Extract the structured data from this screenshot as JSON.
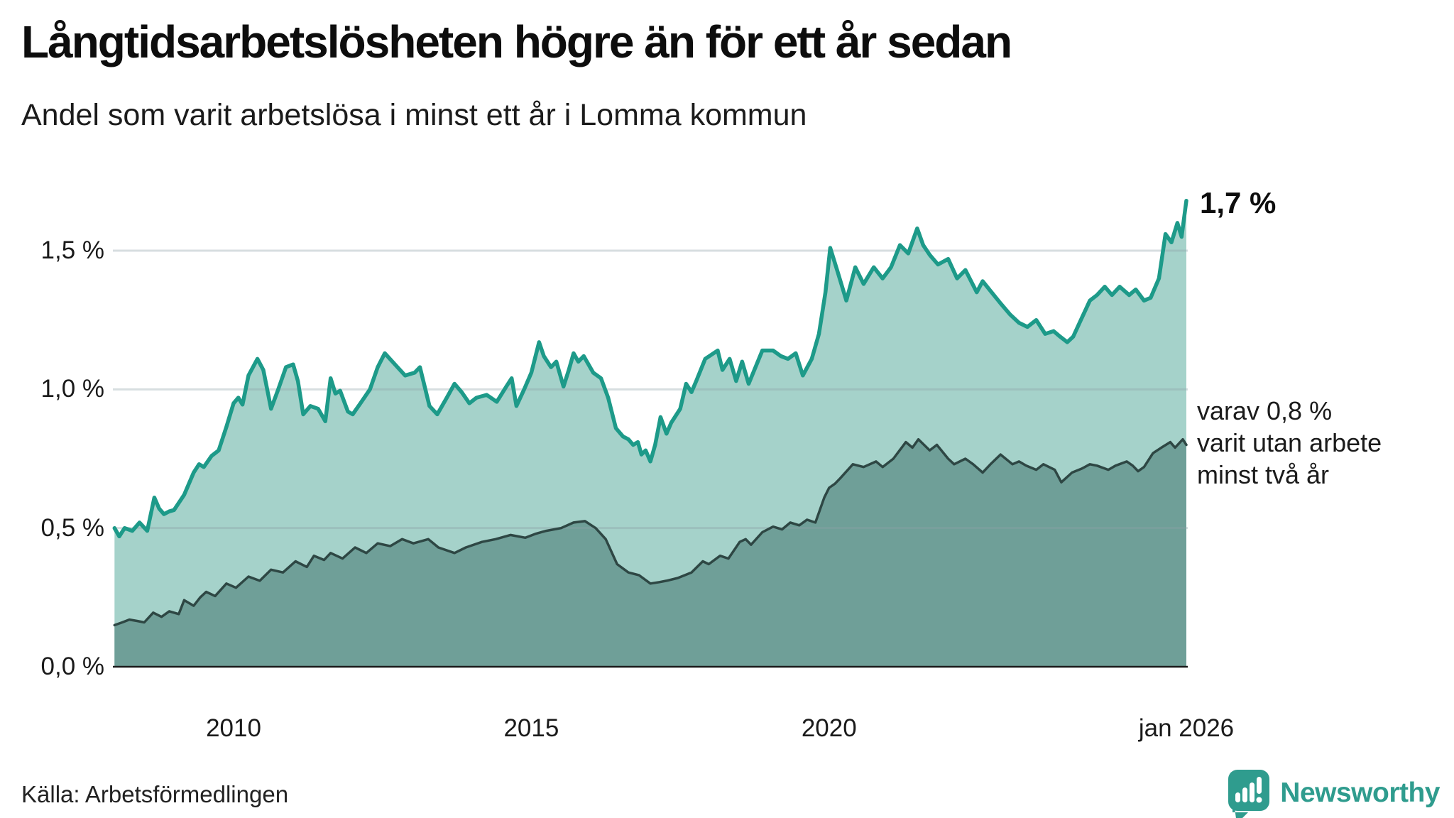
{
  "header": {
    "title": "Långtidsarbetslösheten högre än för ett år sedan",
    "subtitle": "Andel som varit arbetslösa i minst ett år i Lomma kommun"
  },
  "chart_data": {
    "type": "area",
    "title": "Långtidsarbetslösheten högre än för ett år sedan",
    "subtitle": "Andel som varit arbetslösa i minst ett år i Lomma kommun",
    "unit": "%",
    "x_range": [
      2008.0,
      2026.0
    ],
    "ylim": [
      0,
      1.75
    ],
    "grid": true,
    "colors": {
      "line_1yr": "#1d9a89",
      "fill_1yr": "#a5d2ca",
      "line_2yr": "#2e4744",
      "fill_2yr": "#6f9f98",
      "gridline": "rgba(140,160,165,0.35)",
      "baseline": "#1a1a1a"
    },
    "yticks": [
      {
        "label": "1,5 %",
        "value": 1.5
      },
      {
        "label": "1,0 %",
        "value": 1.0
      },
      {
        "label": "0,5 %",
        "value": 0.5
      },
      {
        "label": "0,0 %",
        "value": 0.0
      }
    ],
    "xticks": [
      {
        "label": "2010",
        "t": 2010
      },
      {
        "label": "2015",
        "t": 2015
      },
      {
        "label": "2020",
        "t": 2020
      },
      {
        "label": "jan 2026",
        "t": 2026
      }
    ],
    "annotations": {
      "end_value_label": "1,7 %",
      "side_note_lines": [
        "varav 0,8 %",
        "varit utan arbete",
        "minst två år"
      ]
    },
    "series": [
      {
        "name": "Andel arbetslösa minst ett år",
        "end_value": 1.7,
        "points": [
          [
            2008.0,
            0.5
          ],
          [
            2008.08,
            0.47
          ],
          [
            2008.17,
            0.5
          ],
          [
            2008.3,
            0.49
          ],
          [
            2008.42,
            0.52
          ],
          [
            2008.55,
            0.49
          ],
          [
            2008.67,
            0.61
          ],
          [
            2008.75,
            0.57
          ],
          [
            2008.83,
            0.55
          ],
          [
            2008.92,
            0.56
          ],
          [
            2009.0,
            0.565
          ],
          [
            2009.17,
            0.62
          ],
          [
            2009.33,
            0.7
          ],
          [
            2009.42,
            0.73
          ],
          [
            2009.5,
            0.72
          ],
          [
            2009.63,
            0.76
          ],
          [
            2009.75,
            0.78
          ],
          [
            2009.88,
            0.865
          ],
          [
            2010.0,
            0.95
          ],
          [
            2010.08,
            0.97
          ],
          [
            2010.15,
            0.945
          ],
          [
            2010.25,
            1.05
          ],
          [
            2010.4,
            1.11
          ],
          [
            2010.5,
            1.07
          ],
          [
            2010.63,
            0.93
          ],
          [
            2010.75,
            1.0
          ],
          [
            2010.88,
            1.08
          ],
          [
            2011.0,
            1.09
          ],
          [
            2011.08,
            1.03
          ],
          [
            2011.17,
            0.91
          ],
          [
            2011.29,
            0.94
          ],
          [
            2011.42,
            0.93
          ],
          [
            2011.54,
            0.885
          ],
          [
            2011.63,
            1.04
          ],
          [
            2011.71,
            0.985
          ],
          [
            2011.79,
            0.995
          ],
          [
            2011.92,
            0.92
          ],
          [
            2012.0,
            0.91
          ],
          [
            2012.13,
            0.95
          ],
          [
            2012.29,
            1.0
          ],
          [
            2012.42,
            1.08
          ],
          [
            2012.54,
            1.13
          ],
          [
            2012.71,
            1.09
          ],
          [
            2012.88,
            1.05
          ],
          [
            2013.04,
            1.06
          ],
          [
            2013.13,
            1.08
          ],
          [
            2013.29,
            0.94
          ],
          [
            2013.42,
            0.91
          ],
          [
            2013.58,
            0.97
          ],
          [
            2013.71,
            1.02
          ],
          [
            2013.83,
            0.99
          ],
          [
            2013.96,
            0.95
          ],
          [
            2014.08,
            0.97
          ],
          [
            2014.25,
            0.98
          ],
          [
            2014.42,
            0.955
          ],
          [
            2014.58,
            1.01
          ],
          [
            2014.67,
            1.04
          ],
          [
            2014.75,
            0.94
          ],
          [
            2014.88,
            1.0
          ],
          [
            2015.0,
            1.06
          ],
          [
            2015.13,
            1.17
          ],
          [
            2015.21,
            1.12
          ],
          [
            2015.33,
            1.08
          ],
          [
            2015.42,
            1.1
          ],
          [
            2015.54,
            1.01
          ],
          [
            2015.63,
            1.07
          ],
          [
            2015.71,
            1.13
          ],
          [
            2015.79,
            1.1
          ],
          [
            2015.88,
            1.12
          ],
          [
            2016.04,
            1.06
          ],
          [
            2016.17,
            1.04
          ],
          [
            2016.29,
            0.97
          ],
          [
            2016.42,
            0.86
          ],
          [
            2016.54,
            0.83
          ],
          [
            2016.63,
            0.82
          ],
          [
            2016.71,
            0.8
          ],
          [
            2016.79,
            0.81
          ],
          [
            2016.85,
            0.765
          ],
          [
            2016.92,
            0.78
          ],
          [
            2017.0,
            0.74
          ],
          [
            2017.08,
            0.8
          ],
          [
            2017.17,
            0.9
          ],
          [
            2017.27,
            0.84
          ],
          [
            2017.35,
            0.88
          ],
          [
            2017.5,
            0.93
          ],
          [
            2017.6,
            1.02
          ],
          [
            2017.69,
            0.99
          ],
          [
            2017.77,
            1.03
          ],
          [
            2017.92,
            1.11
          ],
          [
            2018.13,
            1.14
          ],
          [
            2018.21,
            1.07
          ],
          [
            2018.33,
            1.11
          ],
          [
            2018.44,
            1.03
          ],
          [
            2018.54,
            1.1
          ],
          [
            2018.65,
            1.02
          ],
          [
            2018.88,
            1.14
          ],
          [
            2019.06,
            1.14
          ],
          [
            2019.19,
            1.12
          ],
          [
            2019.31,
            1.11
          ],
          [
            2019.44,
            1.13
          ],
          [
            2019.56,
            1.05
          ],
          [
            2019.71,
            1.11
          ],
          [
            2019.83,
            1.2
          ],
          [
            2019.94,
            1.35
          ],
          [
            2020.02,
            1.51
          ],
          [
            2020.15,
            1.42
          ],
          [
            2020.29,
            1.32
          ],
          [
            2020.44,
            1.44
          ],
          [
            2020.58,
            1.38
          ],
          [
            2020.75,
            1.44
          ],
          [
            2020.9,
            1.4
          ],
          [
            2021.04,
            1.44
          ],
          [
            2021.19,
            1.52
          ],
          [
            2021.33,
            1.49
          ],
          [
            2021.48,
            1.58
          ],
          [
            2021.58,
            1.52
          ],
          [
            2021.69,
            1.485
          ],
          [
            2021.83,
            1.45
          ],
          [
            2022.0,
            1.47
          ],
          [
            2022.15,
            1.4
          ],
          [
            2022.29,
            1.43
          ],
          [
            2022.48,
            1.35
          ],
          [
            2022.58,
            1.39
          ],
          [
            2022.73,
            1.35
          ],
          [
            2022.88,
            1.31
          ],
          [
            2023.04,
            1.27
          ],
          [
            2023.19,
            1.24
          ],
          [
            2023.33,
            1.225
          ],
          [
            2023.48,
            1.25
          ],
          [
            2023.63,
            1.2
          ],
          [
            2023.77,
            1.21
          ],
          [
            2023.88,
            1.19
          ],
          [
            2024.0,
            1.17
          ],
          [
            2024.1,
            1.19
          ],
          [
            2024.25,
            1.26
          ],
          [
            2024.38,
            1.32
          ],
          [
            2024.5,
            1.34
          ],
          [
            2024.63,
            1.37
          ],
          [
            2024.75,
            1.34
          ],
          [
            2024.88,
            1.37
          ],
          [
            2025.04,
            1.34
          ],
          [
            2025.15,
            1.36
          ],
          [
            2025.29,
            1.32
          ],
          [
            2025.4,
            1.33
          ],
          [
            2025.54,
            1.4
          ],
          [
            2025.65,
            1.56
          ],
          [
            2025.75,
            1.53
          ],
          [
            2025.85,
            1.6
          ],
          [
            2025.92,
            1.55
          ],
          [
            2026.0,
            1.68
          ]
        ]
      },
      {
        "name": "varav arbetslösa minst två år",
        "end_value": 0.8,
        "points": [
          [
            2008.0,
            0.15
          ],
          [
            2008.13,
            0.16
          ],
          [
            2008.25,
            0.17
          ],
          [
            2008.38,
            0.165
          ],
          [
            2008.5,
            0.16
          ],
          [
            2008.65,
            0.195
          ],
          [
            2008.79,
            0.18
          ],
          [
            2008.92,
            0.2
          ],
          [
            2009.08,
            0.19
          ],
          [
            2009.17,
            0.24
          ],
          [
            2009.33,
            0.22
          ],
          [
            2009.44,
            0.25
          ],
          [
            2009.54,
            0.27
          ],
          [
            2009.69,
            0.255
          ],
          [
            2009.88,
            0.3
          ],
          [
            2010.04,
            0.285
          ],
          [
            2010.25,
            0.325
          ],
          [
            2010.44,
            0.31
          ],
          [
            2010.63,
            0.35
          ],
          [
            2010.83,
            0.34
          ],
          [
            2011.04,
            0.38
          ],
          [
            2011.23,
            0.36
          ],
          [
            2011.35,
            0.4
          ],
          [
            2011.52,
            0.385
          ],
          [
            2011.63,
            0.41
          ],
          [
            2011.83,
            0.39
          ],
          [
            2012.04,
            0.43
          ],
          [
            2012.23,
            0.41
          ],
          [
            2012.42,
            0.445
          ],
          [
            2012.63,
            0.435
          ],
          [
            2012.83,
            0.46
          ],
          [
            2013.02,
            0.445
          ],
          [
            2013.27,
            0.46
          ],
          [
            2013.44,
            0.43
          ],
          [
            2013.71,
            0.41
          ],
          [
            2013.9,
            0.43
          ],
          [
            2014.17,
            0.45
          ],
          [
            2014.4,
            0.46
          ],
          [
            2014.65,
            0.475
          ],
          [
            2014.9,
            0.465
          ],
          [
            2015.08,
            0.48
          ],
          [
            2015.25,
            0.49
          ],
          [
            2015.5,
            0.5
          ],
          [
            2015.71,
            0.52
          ],
          [
            2015.9,
            0.525
          ],
          [
            2016.08,
            0.5
          ],
          [
            2016.25,
            0.46
          ],
          [
            2016.44,
            0.37
          ],
          [
            2016.63,
            0.34
          ],
          [
            2016.81,
            0.33
          ],
          [
            2017.0,
            0.3
          ],
          [
            2017.15,
            0.305
          ],
          [
            2017.27,
            0.31
          ],
          [
            2017.46,
            0.32
          ],
          [
            2017.69,
            0.34
          ],
          [
            2017.88,
            0.38
          ],
          [
            2017.98,
            0.37
          ],
          [
            2018.17,
            0.4
          ],
          [
            2018.31,
            0.39
          ],
          [
            2018.5,
            0.45
          ],
          [
            2018.6,
            0.46
          ],
          [
            2018.69,
            0.44
          ],
          [
            2018.88,
            0.485
          ],
          [
            2019.06,
            0.505
          ],
          [
            2019.21,
            0.495
          ],
          [
            2019.35,
            0.52
          ],
          [
            2019.5,
            0.51
          ],
          [
            2019.63,
            0.53
          ],
          [
            2019.77,
            0.52
          ],
          [
            2019.92,
            0.61
          ],
          [
            2020.0,
            0.645
          ],
          [
            2020.1,
            0.66
          ],
          [
            2020.19,
            0.68
          ],
          [
            2020.4,
            0.73
          ],
          [
            2020.58,
            0.72
          ],
          [
            2020.79,
            0.74
          ],
          [
            2020.9,
            0.72
          ],
          [
            2021.08,
            0.75
          ],
          [
            2021.29,
            0.81
          ],
          [
            2021.4,
            0.79
          ],
          [
            2021.5,
            0.82
          ],
          [
            2021.69,
            0.78
          ],
          [
            2021.81,
            0.8
          ],
          [
            2022.0,
            0.75
          ],
          [
            2022.1,
            0.73
          ],
          [
            2022.29,
            0.75
          ],
          [
            2022.42,
            0.73
          ],
          [
            2022.58,
            0.7
          ],
          [
            2022.71,
            0.73
          ],
          [
            2022.88,
            0.765
          ],
          [
            2023.08,
            0.73
          ],
          [
            2023.19,
            0.74
          ],
          [
            2023.31,
            0.725
          ],
          [
            2023.48,
            0.71
          ],
          [
            2023.6,
            0.73
          ],
          [
            2023.79,
            0.71
          ],
          [
            2023.9,
            0.665
          ],
          [
            2024.08,
            0.7
          ],
          [
            2024.25,
            0.715
          ],
          [
            2024.38,
            0.73
          ],
          [
            2024.5,
            0.725
          ],
          [
            2024.69,
            0.71
          ],
          [
            2024.81,
            0.725
          ],
          [
            2025.0,
            0.74
          ],
          [
            2025.1,
            0.725
          ],
          [
            2025.19,
            0.705
          ],
          [
            2025.29,
            0.72
          ],
          [
            2025.44,
            0.77
          ],
          [
            2025.58,
            0.79
          ],
          [
            2025.73,
            0.81
          ],
          [
            2025.81,
            0.79
          ],
          [
            2025.94,
            0.82
          ],
          [
            2026.0,
            0.8
          ]
        ]
      }
    ]
  },
  "footer": {
    "source": "Källa: Arbetsförmedlingen",
    "brand": "Newsworthy"
  }
}
